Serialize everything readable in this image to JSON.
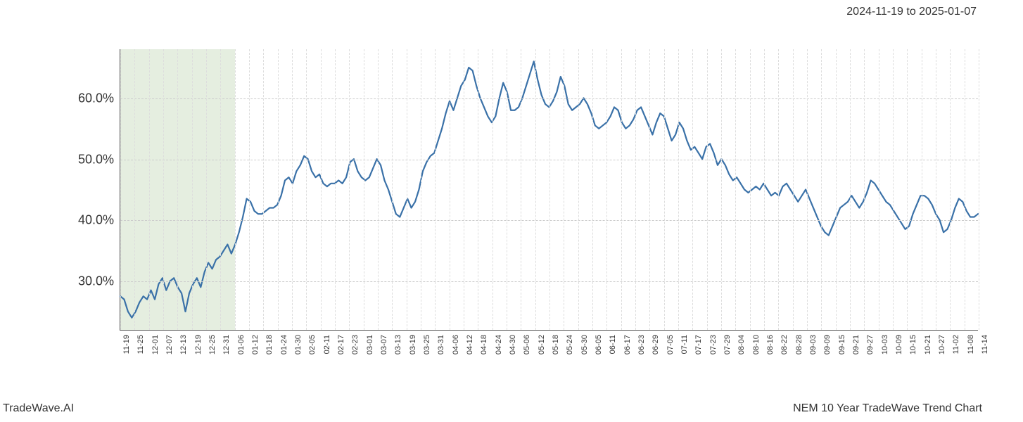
{
  "header": {
    "date_range": "2024-11-19 to 2025-01-07"
  },
  "footer": {
    "left": "TradeWave.AI",
    "right": "NEM 10 Year TradeWave Trend Chart"
  },
  "chart": {
    "type": "line",
    "background_color": "#ffffff",
    "grid_color_h": "#cccccc",
    "grid_color_v": "#dddddd",
    "axis_color": "#555555",
    "line_color": "#3a71a8",
    "line_width": 2.2,
    "highlight_band": {
      "color": "#dce8d5",
      "opacity": 0.75,
      "x_start_index": 0,
      "x_end_index": 8
    },
    "y_axis": {
      "min": 22,
      "max": 68,
      "ticks": [
        30,
        40,
        50,
        60
      ],
      "tick_labels": [
        "30.0%",
        "40.0%",
        "50.0%",
        "60.0%"
      ],
      "label_fontsize": 18,
      "label_color": "#333333"
    },
    "x_axis": {
      "labels": [
        "11-19",
        "11-25",
        "12-01",
        "12-07",
        "12-13",
        "12-19",
        "12-25",
        "12-31",
        "01-06",
        "01-12",
        "01-18",
        "01-24",
        "01-30",
        "02-05",
        "02-11",
        "02-17",
        "02-23",
        "03-01",
        "03-07",
        "03-13",
        "03-19",
        "03-25",
        "03-31",
        "04-06",
        "04-12",
        "04-18",
        "04-24",
        "04-30",
        "05-06",
        "05-12",
        "05-18",
        "05-24",
        "05-30",
        "06-05",
        "06-11",
        "06-17",
        "06-23",
        "06-29",
        "07-05",
        "07-11",
        "07-17",
        "07-23",
        "07-29",
        "08-04",
        "08-10",
        "08-16",
        "08-22",
        "08-28",
        "09-03",
        "09-09",
        "09-15",
        "09-21",
        "09-27",
        "10-03",
        "10-09",
        "10-15",
        "10-21",
        "10-27",
        "11-02",
        "11-08",
        "11-14"
      ],
      "label_fontsize": 11,
      "label_color": "#333333",
      "rotation": -90
    },
    "series": {
      "values": [
        27.5,
        27.0,
        25.0,
        24.0,
        25.0,
        26.5,
        27.5,
        27.0,
        28.5,
        27.0,
        29.5,
        30.5,
        28.5,
        30.0,
        30.5,
        29.0,
        28.0,
        25.0,
        28.0,
        29.5,
        30.5,
        29.0,
        31.5,
        33.0,
        32.0,
        33.5,
        34.0,
        35.0,
        36.0,
        34.5,
        36.0,
        38.0,
        40.5,
        43.5,
        43.0,
        41.5,
        41.0,
        41.0,
        41.5,
        42.0,
        42.0,
        42.5,
        44.0,
        46.5,
        47.0,
        46.0,
        48.0,
        49.0,
        50.5,
        50.0,
        48.0,
        47.0,
        47.5,
        46.0,
        45.5,
        46.0,
        46.0,
        46.5,
        46.0,
        47.0,
        49.5,
        50.0,
        48.0,
        47.0,
        46.5,
        47.0,
        48.5,
        50.0,
        49.0,
        46.5,
        45.0,
        43.0,
        41.0,
        40.5,
        42.0,
        43.5,
        42.0,
        43.0,
        45.0,
        48.0,
        49.5,
        50.5,
        51.0,
        53.0,
        55.0,
        57.5,
        59.5,
        58.0,
        60.0,
        62.0,
        63.0,
        65.0,
        64.5,
        62.0,
        60.0,
        58.5,
        57.0,
        56.0,
        57.0,
        60.0,
        62.5,
        61.0,
        58.0,
        58.0,
        58.5,
        60.0,
        62.0,
        64.0,
        66.0,
        63.0,
        60.5,
        59.0,
        58.5,
        59.5,
        61.0,
        63.5,
        62.0,
        59.0,
        58.0,
        58.5,
        59.0,
        60.0,
        59.0,
        57.5,
        55.5,
        55.0,
        55.5,
        56.0,
        57.0,
        58.5,
        58.0,
        56.0,
        55.0,
        55.5,
        56.5,
        58.0,
        58.5,
        57.0,
        55.5,
        54.0,
        56.0,
        57.5,
        57.0,
        55.0,
        53.0,
        54.0,
        56.0,
        55.0,
        53.0,
        51.5,
        52.0,
        51.0,
        50.0,
        52.0,
        52.5,
        51.0,
        49.0,
        50.0,
        49.0,
        47.5,
        46.5,
        47.0,
        46.0,
        45.0,
        44.5,
        45.0,
        45.5,
        45.0,
        46.0,
        45.0,
        44.0,
        44.5,
        44.0,
        45.5,
        46.0,
        45.0,
        44.0,
        43.0,
        44.0,
        45.0,
        43.5,
        42.0,
        40.5,
        39.0,
        38.0,
        37.5,
        39.0,
        40.5,
        42.0,
        42.5,
        43.0,
        44.0,
        43.0,
        42.0,
        43.0,
        44.5,
        46.5,
        46.0,
        45.0,
        44.0,
        43.0,
        42.5,
        41.5,
        40.5,
        39.5,
        38.5,
        39.0,
        41.0,
        42.5,
        44.0,
        44.0,
        43.5,
        42.5,
        41.0,
        40.0,
        38.0,
        38.5,
        40.0,
        42.0,
        43.5,
        43.0,
        41.5,
        40.5,
        40.5,
        41.0
      ]
    }
  }
}
